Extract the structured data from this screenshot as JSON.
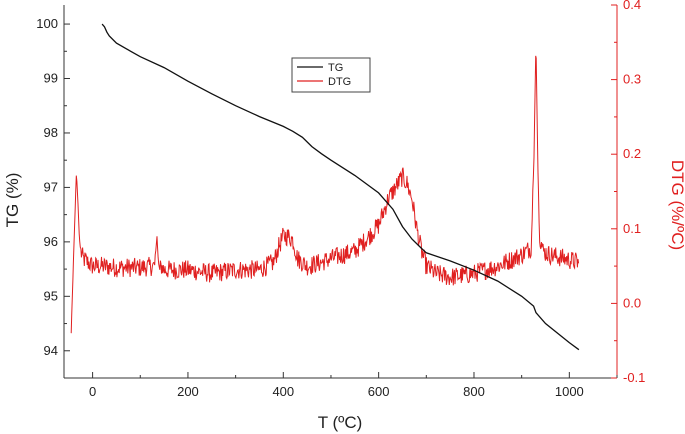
{
  "chart_data": {
    "type": "line",
    "xlabel": "T (ºC)",
    "ylabel_left": "TG (%)",
    "ylabel_right": "DTG (%/ºC)",
    "xlim": [
      -60,
      1100
    ],
    "ylim_left": [
      93.5,
      100.35
    ],
    "ylim_right": [
      -0.1,
      0.4
    ],
    "x_ticks": [
      0,
      200,
      400,
      600,
      800,
      1000
    ],
    "y_left_ticks": [
      94,
      95,
      96,
      97,
      98,
      99,
      100
    ],
    "y_right_ticks": [
      -0.1,
      0.0,
      0.1,
      0.2,
      0.3,
      0.4
    ],
    "y_right_tick_labels": [
      "-0.1",
      "0.0",
      "0.1",
      "0.2",
      "0.3",
      "0.4"
    ],
    "grid": false,
    "legend_position": "top-center",
    "colors": {
      "TG": "#111111",
      "DTG": "#e02020",
      "right_axis": "#e02020"
    },
    "series": [
      {
        "name": "TG",
        "axis": "left",
        "x": [
          20,
          25,
          30,
          35,
          50,
          80,
          100,
          150,
          200,
          250,
          300,
          350,
          400,
          420,
          440,
          460,
          480,
          500,
          550,
          600,
          630,
          650,
          670,
          690,
          700,
          750,
          800,
          850,
          900,
          925,
          930,
          950,
          1000,
          1020
        ],
        "y": [
          100.0,
          99.95,
          99.85,
          99.78,
          99.65,
          99.5,
          99.4,
          99.2,
          98.95,
          98.72,
          98.5,
          98.3,
          98.12,
          98.03,
          97.92,
          97.75,
          97.62,
          97.5,
          97.22,
          96.9,
          96.6,
          96.28,
          96.05,
          95.88,
          95.8,
          95.65,
          95.48,
          95.28,
          95.0,
          94.82,
          94.7,
          94.5,
          94.15,
          94.02
        ]
      },
      {
        "name": "DTG",
        "axis": "right",
        "x": [
          -45,
          -42,
          -40,
          -37,
          -34,
          -31,
          -28,
          -25,
          -20,
          -10,
          0,
          20,
          50,
          100,
          130,
          135,
          138,
          141,
          145,
          150,
          200,
          250,
          300,
          350,
          380,
          390,
          400,
          410,
          420,
          430,
          450,
          480,
          500,
          550,
          580,
          600,
          620,
          640,
          650,
          660,
          670,
          680,
          690,
          700,
          720,
          750,
          800,
          850,
          900,
          920,
          926,
          930,
          934,
          938,
          945,
          960,
          990,
          1020
        ],
        "y": [
          -0.04,
          0.02,
          0.06,
          0.12,
          0.175,
          0.14,
          0.09,
          0.07,
          0.06,
          0.055,
          0.05,
          0.05,
          0.048,
          0.048,
          0.05,
          0.09,
          0.055,
          0.045,
          0.05,
          0.045,
          0.045,
          0.04,
          0.045,
          0.045,
          0.055,
          0.075,
          0.09,
          0.09,
          0.085,
          0.06,
          0.05,
          0.055,
          0.06,
          0.07,
          0.09,
          0.105,
          0.14,
          0.16,
          0.17,
          0.16,
          0.14,
          0.1,
          0.07,
          0.05,
          0.04,
          0.035,
          0.04,
          0.05,
          0.065,
          0.075,
          0.2,
          0.355,
          0.18,
          0.09,
          0.07,
          0.065,
          0.06,
          0.055
        ]
      }
    ]
  }
}
